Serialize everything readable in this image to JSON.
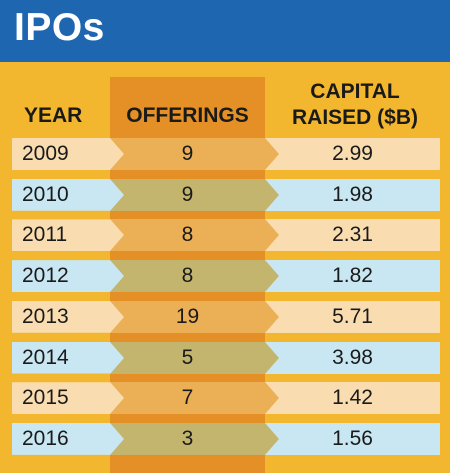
{
  "title": "IPOs",
  "colors": {
    "header_blue": "#1e67b0",
    "panel_gold": "#f3b62f",
    "offerings_band": "#e49026",
    "row_light": "#f9ddb0",
    "row_blue": "#c9e7f2",
    "mid_orange": "#ebaf55",
    "mid_olive": "#c4b56e"
  },
  "chart_data": {
    "type": "table",
    "title": "IPOs",
    "columns": [
      "YEAR",
      "OFFERINGS",
      "CAPITAL RAISED ($B)"
    ],
    "column_header_lines": {
      "capital": [
        "CAPITAL",
        "RAISED ($B)"
      ]
    },
    "rows": [
      {
        "year": "2009",
        "offerings": "9",
        "capital": "2.99"
      },
      {
        "year": "2010",
        "offerings": "9",
        "capital": "1.98"
      },
      {
        "year": "2011",
        "offerings": "8",
        "capital": "2.31"
      },
      {
        "year": "2012",
        "offerings": "8",
        "capital": "1.82"
      },
      {
        "year": "2013",
        "offerings": "19",
        "capital": "5.71"
      },
      {
        "year": "2014",
        "offerings": "5",
        "capital": "3.98"
      },
      {
        "year": "2015",
        "offerings": "7",
        "capital": "1.42"
      },
      {
        "year": "2016",
        "offerings": "3",
        "capital": "1.56"
      }
    ]
  }
}
